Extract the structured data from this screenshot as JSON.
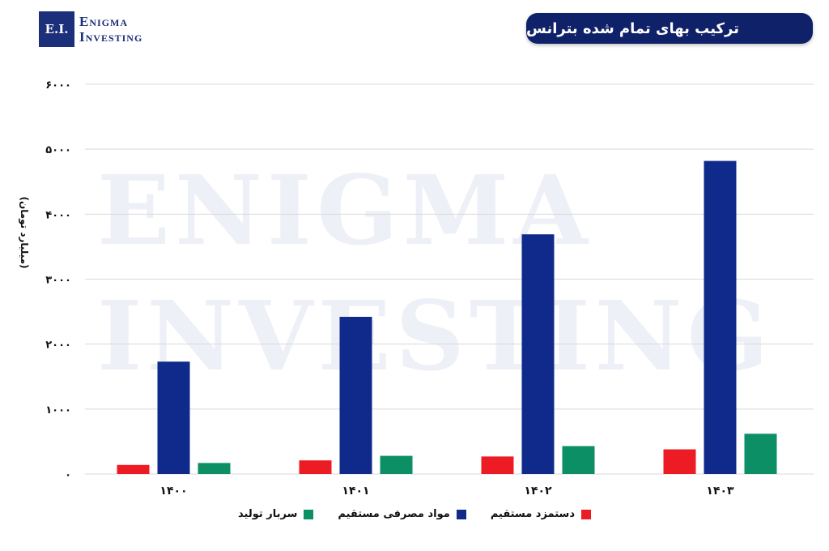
{
  "brand": {
    "logo_mark": "E.I.",
    "line1": "Enigma",
    "line2": "Investing",
    "watermark_line1": "ENIGMA",
    "watermark_line2": "INVESTING"
  },
  "colors": {
    "title_bg": "#0f2168",
    "red": "#ed1c24",
    "navy": "#102a8c",
    "green": "#0d8f65"
  },
  "chart_data": {
    "type": "bar",
    "title": "ترکیب بهای تمام شده بترانس",
    "ylabel": "(میلیارد تومان)",
    "xlabel": "",
    "categories": [
      "۱۴۰۰",
      "۱۴۰۱",
      "۱۴۰۲",
      "۱۴۰۳"
    ],
    "ylim": [
      0,
      6000
    ],
    "yticks": [
      0,
      1000,
      2000,
      3000,
      4000,
      5000,
      6000
    ],
    "ytick_labels": [
      "۰",
      "۱۰۰۰",
      "۲۰۰۰",
      "۳۰۰۰",
      "۴۰۰۰",
      "۵۰۰۰",
      "۶۰۰۰"
    ],
    "grid": true,
    "legend_position": "bottom",
    "series": [
      {
        "name": "دستمزد مستقیم",
        "color": "#ed1c24",
        "values": [
          140,
          210,
          270,
          380
        ]
      },
      {
        "name": "مواد مصرفی مستقیم",
        "color": "#102a8c",
        "values": [
          1730,
          2420,
          3690,
          4820
        ]
      },
      {
        "name": "سربار تولید",
        "color": "#0d8f65",
        "values": [
          170,
          280,
          430,
          620
        ]
      }
    ]
  }
}
